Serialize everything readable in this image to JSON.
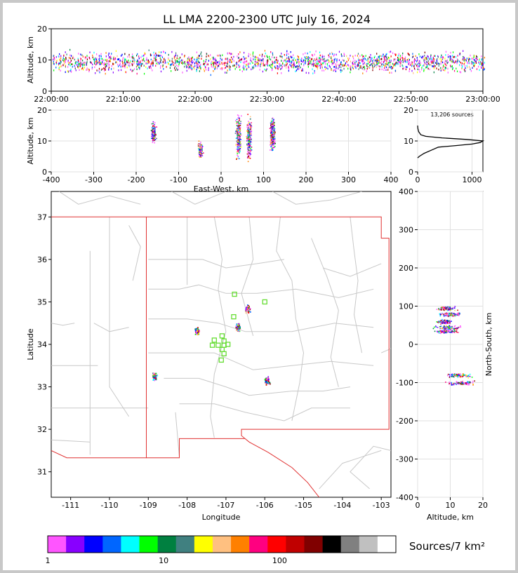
{
  "title": "LL LMA 2200-2300 UTC July 16, 2024",
  "chart_data": [
    {
      "panel": "altitude-time",
      "type": "scatter",
      "ylabel": "Altitude, km",
      "ylim": [
        0,
        20
      ],
      "yticks": [
        0,
        10,
        20
      ],
      "xticks": [
        "22:00:00",
        "22:10:00",
        "22:20:00",
        "22:30:00",
        "22:40:00",
        "22:50:00",
        "23:00:00"
      ],
      "xlim_minutes": [
        0,
        60
      ]
    },
    {
      "panel": "altitude-eastwest",
      "type": "scatter",
      "xlabel": "East-West, km",
      "ylabel": "Altitude, km",
      "xlim": [
        -400,
        400
      ],
      "ylim": [
        0,
        20
      ],
      "xticks": [
        -400,
        -300,
        -200,
        -100,
        0,
        100,
        200,
        300,
        400
      ],
      "yticks": [
        0,
        10,
        20
      ],
      "clusters": [
        {
          "x": -160,
          "zmin": 9,
          "zmax": 17
        },
        {
          "x": -50,
          "zmin": 4,
          "zmax": 11
        },
        {
          "x": 40,
          "zmin": 3,
          "zmax": 19
        },
        {
          "x": 65,
          "zmin": 3,
          "zmax": 19
        },
        {
          "x": 120,
          "zmin": 6,
          "zmax": 19
        }
      ]
    },
    {
      "panel": "altitude-histogram",
      "type": "line",
      "annotation": "13,206 sources",
      "xlim": [
        0,
        1200
      ],
      "ylim": [
        0,
        20
      ],
      "xticks": [
        0,
        1000
      ],
      "yticks": [
        0,
        10,
        20
      ],
      "altitude_km": [
        4.5,
        5,
        6,
        7,
        8,
        8.5,
        9,
        9.5,
        10,
        10.5,
        11,
        11.5,
        12,
        13,
        14,
        15
      ],
      "count": [
        0,
        30,
        120,
        250,
        380,
        700,
        1000,
        1150,
        1200,
        900,
        450,
        150,
        60,
        20,
        5,
        0
      ]
    },
    {
      "panel": "plan-view-map",
      "type": "scatter",
      "xlabel": "Longitude",
      "ylabel": "Latitude",
      "xlim": [
        -111.5,
        -102.75
      ],
      "ylim": [
        30.4,
        37.6
      ],
      "xticks": [
        -111,
        -110,
        -109,
        -108,
        -107,
        -106,
        -105,
        -104,
        -103
      ],
      "yticks": [
        31,
        32,
        33,
        34,
        35,
        36,
        37
      ],
      "clusters": [
        {
          "lon": -108.85,
          "lat": 33.27
        },
        {
          "lon": -107.75,
          "lat": 34.3
        },
        {
          "lon": -106.7,
          "lat": 34.4
        },
        {
          "lon": -106.45,
          "lat": 34.85
        },
        {
          "lon": -105.95,
          "lat": 33.15
        }
      ],
      "stations": [
        {
          "lon": -106.78,
          "lat": 35.18
        },
        {
          "lon": -106.0,
          "lat": 35.0
        },
        {
          "lon": -106.8,
          "lat": 34.65
        },
        {
          "lon": -107.1,
          "lat": 34.2
        },
        {
          "lon": -107.3,
          "lat": 34.1
        },
        {
          "lon": -107.35,
          "lat": 33.98
        },
        {
          "lon": -107.2,
          "lat": 33.98
        },
        {
          "lon": -107.05,
          "lat": 33.98
        },
        {
          "lon": -106.95,
          "lat": 34.0
        },
        {
          "lon": -107.1,
          "lat": 33.88
        },
        {
          "lon": -107.05,
          "lat": 33.78
        },
        {
          "lon": -107.12,
          "lat": 33.63
        },
        {
          "lon": -107.05,
          "lat": 34.08
        }
      ]
    },
    {
      "panel": "northsouth-altitude",
      "type": "scatter",
      "xlabel": "Altitude, km",
      "ylabel": "North-South, km",
      "xlim": [
        0,
        20
      ],
      "ylim": [
        -400,
        400
      ],
      "xticks": [
        0,
        10,
        20
      ],
      "yticks": [
        -400,
        -300,
        -200,
        -100,
        0,
        100,
        200,
        300,
        400
      ],
      "clusters": [
        {
          "y": 95,
          "zmin": 5,
          "zmax": 13
        },
        {
          "y": 80,
          "zmin": 5,
          "zmax": 15
        },
        {
          "y": 60,
          "zmin": 5,
          "zmax": 11
        },
        {
          "y": 45,
          "zmin": 3,
          "zmax": 16
        },
        {
          "y": 35,
          "zmin": 3,
          "zmax": 14
        },
        {
          "y": -80,
          "zmin": 8,
          "zmax": 17
        },
        {
          "y": -100,
          "zmin": 7,
          "zmax": 19
        }
      ]
    },
    {
      "panel": "colorbar",
      "type": "heatmap",
      "label": "Sources/7 km²",
      "scale": "log",
      "range": [
        1,
        1000
      ],
      "ticks": [
        "1",
        "10",
        "100"
      ],
      "tick_values": [
        1,
        10,
        100
      ],
      "colors": [
        "#ff55ff",
        "#8800ff",
        "#0000ff",
        "#0066ff",
        "#00ffff",
        "#00ff00",
        "#008040",
        "#408080",
        "#ffff00",
        "#ffc080",
        "#ff8000",
        "#ff0080",
        "#ff0000",
        "#c00000",
        "#800000",
        "#000000",
        "#808080",
        "#c0c0c0",
        "#ffffff"
      ]
    }
  ]
}
